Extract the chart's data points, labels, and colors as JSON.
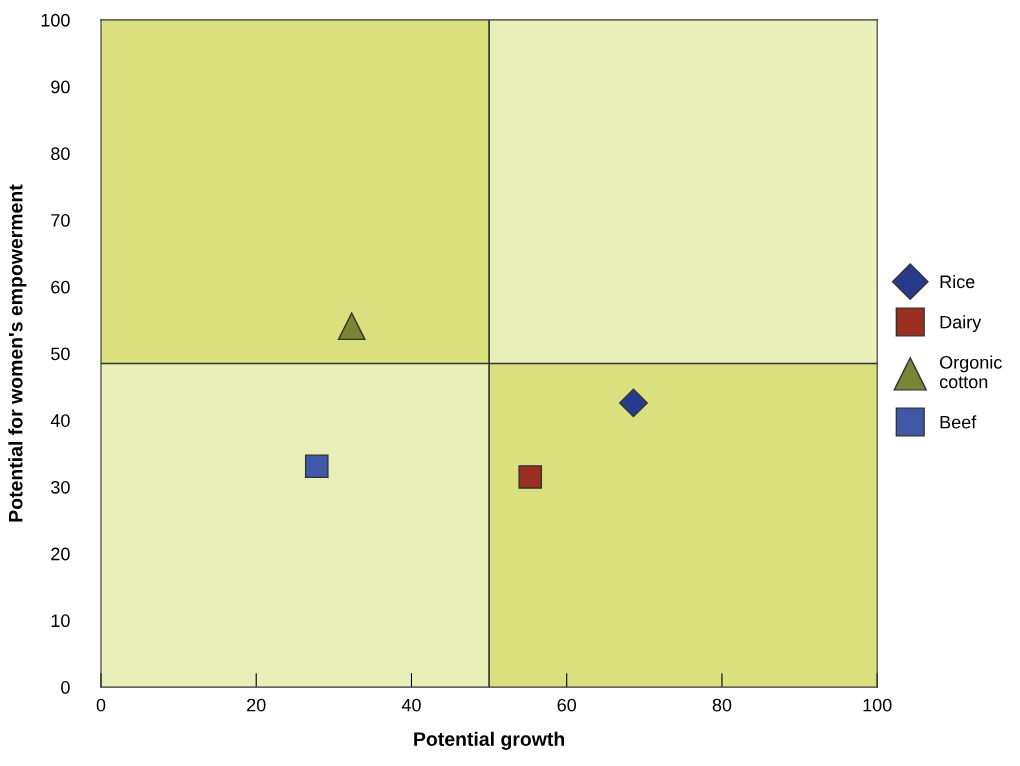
{
  "chart_data": {
    "type": "scatter",
    "xlabel": "Potential growth",
    "ylabel": "Potential for women's empowerment",
    "series": [
      {
        "name": "Rice",
        "color": "#283a8c",
        "marker": "diamond",
        "x": [
          68.6
        ],
        "values": [
          42.6
        ]
      },
      {
        "name": "Dairy",
        "color": "#9a3020",
        "marker": "square",
        "x": [
          55.3
        ],
        "values": [
          31.5
        ]
      },
      {
        "name": "Orgonic\ncotton",
        "color": "#7a8535",
        "marker": "triangle",
        "x": [
          32.3
        ],
        "values": [
          54.1
        ]
      },
      {
        "name": "Beef",
        "color": "#4058a8",
        "marker": "square",
        "x": [
          27.8
        ],
        "values": [
          33.1
        ]
      }
    ],
    "xlim": [
      0,
      100
    ],
    "ylim": [
      0,
      100
    ],
    "xticks": [
      0,
      20,
      40,
      60,
      80,
      100
    ],
    "yticks": [
      0,
      10,
      20,
      30,
      40,
      50,
      60,
      70,
      80,
      90,
      100
    ],
    "ref_lines": [
      {
        "axis": "x",
        "value": 50,
        "color": "#333333"
      },
      {
        "axis": "y",
        "value": 48.5,
        "color": "#333333"
      }
    ],
    "bands": [
      {
        "axis": "x",
        "from": 0,
        "to": 50,
        "color": "#dbe07e"
      },
      {
        "axis": "y",
        "from": 0,
        "to": 48.5,
        "color": "#dbe07e"
      }
    ],
    "grid": false,
    "legend": "right"
  }
}
